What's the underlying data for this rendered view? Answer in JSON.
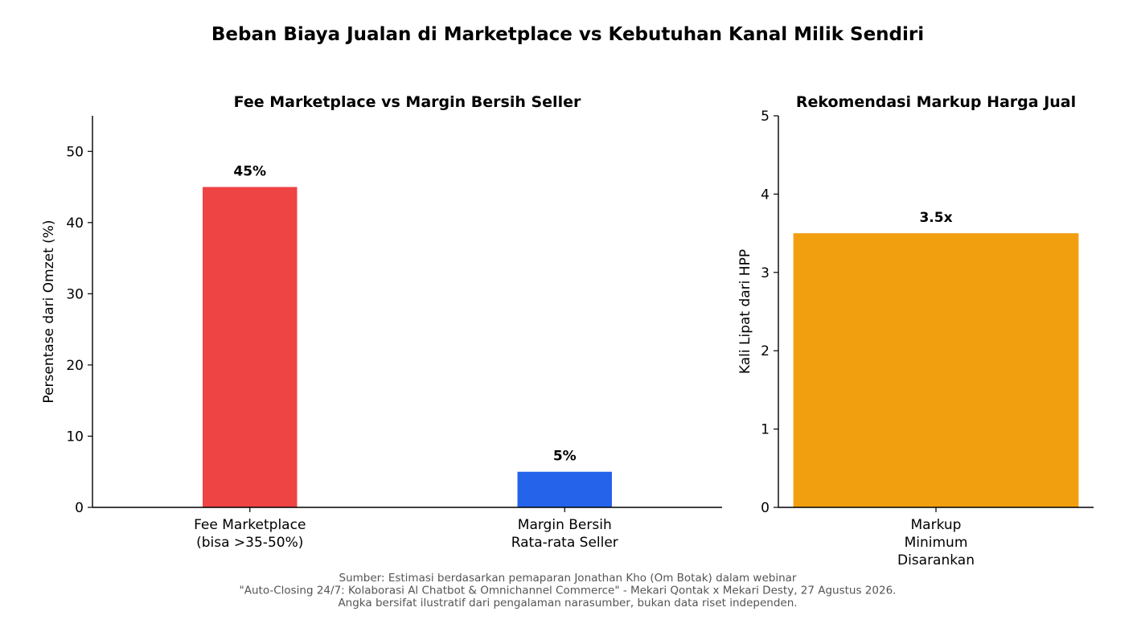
{
  "figure_title": "Beban Biaya Jualan di Marketplace vs Kebutuhan Kanal Milik Sendiri",
  "source_note": [
    "Sumber: Estimasi berdasarkan pemaparan Jonathan Kho (Om Botak) dalam webinar",
    "\"Auto-Closing 24/7: Kolaborasi Al Chatbot & Omnichannel Commerce\" - Mekari Qontak x Mekari Desty, 27 Agustus 2026.",
    "Angka bersifat ilustratif dari pengalaman narasumber, bukan data riset independen."
  ],
  "chart_data": [
    {
      "type": "bar",
      "title": "Fee Marketplace vs Margin Bersih Seller",
      "xlabel": "",
      "ylabel": "Persentase dari Omzet (%)",
      "categories": [
        [
          "Fee Marketplace",
          "(bisa >35-50%)"
        ],
        [
          "Margin Bersih",
          "Rata-rata Seller"
        ]
      ],
      "values": [
        45,
        5
      ],
      "data_labels": [
        "45%",
        "5%"
      ],
      "colors": [
        "#ef4444",
        "#2563eb"
      ],
      "ylim": [
        0,
        55
      ],
      "yticks": [
        0,
        10,
        20,
        30,
        40,
        50
      ],
      "grid": false
    },
    {
      "type": "bar",
      "title": "Rekomendasi Markup Harga Jual",
      "xlabel": "",
      "ylabel": "Kali Lipat dari HPP",
      "categories": [
        [
          "Markup",
          "Minimum",
          "Disarankan"
        ]
      ],
      "values": [
        3.5
      ],
      "data_labels": [
        "3.5x"
      ],
      "colors": [
        "#f29f0f"
      ],
      "ylim": [
        0,
        5
      ],
      "yticks": [
        0,
        1,
        2,
        3,
        4,
        5
      ],
      "grid": false
    }
  ]
}
